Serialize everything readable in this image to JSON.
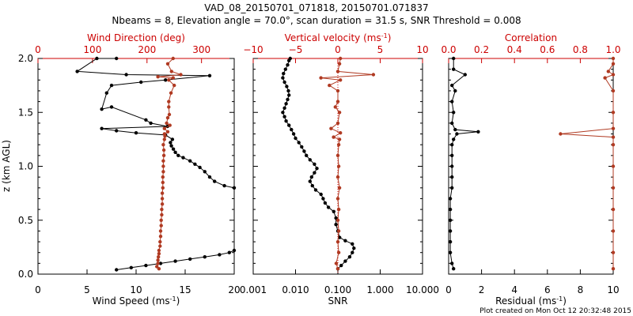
{
  "title_line1": "VAD_08_20150701_071818, 20150701.071837",
  "title_line2": "Nbeams = 8, Elevation angle = 70.0°, scan duration = 31.5 s, SNR Threshold = 0.008",
  "footer": "Plot created on Mon Oct 12 20:32:48 2015",
  "colors": {
    "black_series": "#000000",
    "red_series": "#b03a22",
    "red_axis": "#cc0000"
  },
  "chart_data": [
    {
      "type": "line",
      "ylabel": "z (km AGL)",
      "ylim": [
        0.0,
        2.0
      ],
      "yticks": [
        "0.0",
        "0.5",
        "1.0",
        "1.5",
        "2.0"
      ],
      "bottom_axis": {
        "label": "Wind Speed (ms",
        "label_sup": "-1",
        "label_end": ")",
        "range": [
          0,
          20
        ],
        "ticks": [
          "0",
          "5",
          "10",
          "15",
          "20"
        ]
      },
      "top_axis": {
        "label": "Wind Direction (deg)",
        "range": [
          0,
          360
        ],
        "ticks": [
          "0",
          "100",
          "200",
          "300"
        ]
      },
      "series": [
        {
          "axis": "bottom",
          "color": "#000000",
          "points": [
            [
              8.0,
              0.04
            ],
            [
              9.5,
              0.06
            ],
            [
              11.0,
              0.08
            ],
            [
              12.5,
              0.1
            ],
            [
              14.0,
              0.12
            ],
            [
              15.5,
              0.14
            ],
            [
              17.0,
              0.16
            ],
            [
              18.5,
              0.18
            ],
            [
              19.5,
              0.2
            ],
            [
              20.0,
              0.22
            ],
            [
              20.0,
              0.8
            ],
            [
              19.0,
              0.82
            ],
            [
              18.0,
              0.86
            ],
            [
              17.5,
              0.9
            ],
            [
              17.0,
              0.95
            ],
            [
              16.5,
              0.99
            ],
            [
              16.0,
              1.02
            ],
            [
              15.5,
              1.05
            ],
            [
              14.8,
              1.08
            ],
            [
              14.3,
              1.1
            ],
            [
              14.0,
              1.13
            ],
            [
              13.8,
              1.16
            ],
            [
              13.6,
              1.19
            ],
            [
              13.5,
              1.22
            ],
            [
              13.7,
              1.25
            ],
            [
              13.0,
              1.29
            ],
            [
              10.0,
              1.31
            ],
            [
              8.0,
              1.33
            ],
            [
              6.5,
              1.35
            ],
            [
              13.2,
              1.37
            ],
            [
              11.5,
              1.4
            ],
            [
              11.0,
              1.43
            ],
            [
              7.5,
              1.55
            ],
            [
              6.5,
              1.53
            ],
            [
              7.0,
              1.68
            ],
            [
              7.5,
              1.75
            ],
            [
              10.5,
              1.78
            ],
            [
              13.0,
              1.8
            ],
            [
              17.5,
              1.84
            ],
            [
              9.0,
              1.85
            ],
            [
              4.0,
              1.88
            ],
            [
              6.0,
              2.0
            ],
            [
              8.0,
              2.0
            ]
          ]
        },
        {
          "axis": "top",
          "color": "#b03a22",
          "points": [
            [
              222,
              0.05
            ],
            [
              218,
              0.07
            ],
            [
              220,
              0.1
            ],
            [
              220,
              0.13
            ],
            [
              221,
              0.16
            ],
            [
              222,
              0.19
            ],
            [
              222,
              0.22
            ],
            [
              224,
              0.26
            ],
            [
              224,
              0.3
            ],
            [
              225,
              0.35
            ],
            [
              225,
              0.4
            ],
            [
              226,
              0.45
            ],
            [
              226,
              0.5
            ],
            [
              227,
              0.55
            ],
            [
              227,
              0.6
            ],
            [
              228,
              0.65
            ],
            [
              228,
              0.7
            ],
            [
              228,
              0.75
            ],
            [
              229,
              0.8
            ],
            [
              229,
              0.85
            ],
            [
              229,
              0.9
            ],
            [
              230,
              0.95
            ],
            [
              230,
              1.0
            ],
            [
              230,
              1.05
            ],
            [
              231,
              1.1
            ],
            [
              231,
              1.15
            ],
            [
              230,
              1.2
            ],
            [
              232,
              1.25
            ],
            [
              233,
              1.28
            ],
            [
              232,
              1.3
            ],
            [
              238,
              1.32
            ],
            [
              232,
              1.35
            ],
            [
              242,
              1.38
            ],
            [
              236,
              1.4
            ],
            [
              238,
              1.45
            ],
            [
              241,
              1.48
            ],
            [
              240,
              1.55
            ],
            [
              240,
              1.6
            ],
            [
              244,
              1.68
            ],
            [
              250,
              1.75
            ],
            [
              240,
              1.8
            ],
            [
              248,
              1.82
            ],
            [
              220,
              1.83
            ],
            [
              262,
              1.85
            ],
            [
              245,
              1.88
            ],
            [
              238,
              1.95
            ],
            [
              248,
              2.0
            ]
          ]
        }
      ]
    },
    {
      "type": "line",
      "xscale": "log",
      "ylim": [
        0.0,
        2.0
      ],
      "bottom_axis": {
        "label": "SNR",
        "range": [
          0.001,
          10.0
        ],
        "ticks": [
          "0.001",
          "0.010",
          "0.100",
          "1.000",
          "10.000"
        ]
      },
      "top_axis": {
        "label": "Vertical velocity (ms",
        "label_sup": "-1",
        "label_end": ")",
        "range": [
          -10,
          10
        ],
        "ticks": [
          "−10",
          "−5",
          "0",
          "5",
          "10"
        ]
      },
      "series": [
        {
          "axis": "bottom",
          "color": "#000000",
          "points": [
            [
              0.1,
              0.05
            ],
            [
              0.12,
              0.08
            ],
            [
              0.15,
              0.12
            ],
            [
              0.19,
              0.16
            ],
            [
              0.22,
              0.2
            ],
            [
              0.24,
              0.24
            ],
            [
              0.22,
              0.28
            ],
            [
              0.15,
              0.31
            ],
            [
              0.11,
              0.34
            ],
            [
              0.1,
              0.4
            ],
            [
              0.09,
              0.46
            ],
            [
              0.09,
              0.52
            ],
            [
              0.08,
              0.58
            ],
            [
              0.06,
              0.62
            ],
            [
              0.05,
              0.66
            ],
            [
              0.045,
              0.7
            ],
            [
              0.04,
              0.74
            ],
            [
              0.03,
              0.78
            ],
            [
              0.025,
              0.82
            ],
            [
              0.022,
              0.86
            ],
            [
              0.024,
              0.9
            ],
            [
              0.028,
              0.94
            ],
            [
              0.032,
              0.98
            ],
            [
              0.028,
              1.02
            ],
            [
              0.022,
              1.06
            ],
            [
              0.018,
              1.1
            ],
            [
              0.016,
              1.14
            ],
            [
              0.014,
              1.18
            ],
            [
              0.012,
              1.22
            ],
            [
              0.01,
              1.26
            ],
            [
              0.009,
              1.3
            ],
            [
              0.008,
              1.34
            ],
            [
              0.007,
              1.38
            ],
            [
              0.006,
              1.42
            ],
            [
              0.0055,
              1.46
            ],
            [
              0.005,
              1.5
            ],
            [
              0.0055,
              1.54
            ],
            [
              0.006,
              1.58
            ],
            [
              0.0065,
              1.62
            ],
            [
              0.007,
              1.66
            ],
            [
              0.0068,
              1.7
            ],
            [
              0.0062,
              1.74
            ],
            [
              0.0055,
              1.78
            ],
            [
              0.005,
              1.82
            ],
            [
              0.0052,
              1.86
            ],
            [
              0.0058,
              1.9
            ],
            [
              0.0065,
              1.94
            ],
            [
              0.007,
              1.98
            ],
            [
              0.0075,
              2.0
            ]
          ]
        },
        {
          "axis": "top",
          "color": "#b03a22",
          "points": [
            [
              0.0,
              0.05
            ],
            [
              -0.2,
              0.1
            ],
            [
              0.1,
              0.2
            ],
            [
              0.0,
              0.3
            ],
            [
              0.1,
              0.4
            ],
            [
              0.0,
              0.5
            ],
            [
              0.1,
              0.6
            ],
            [
              0.0,
              0.7
            ],
            [
              0.2,
              0.8
            ],
            [
              0.0,
              0.9
            ],
            [
              0.1,
              1.0
            ],
            [
              0.0,
              1.1
            ],
            [
              0.1,
              1.2
            ],
            [
              0.2,
              1.25
            ],
            [
              -0.5,
              1.27
            ],
            [
              0.3,
              1.31
            ],
            [
              -0.8,
              1.35
            ],
            [
              0.0,
              1.4
            ],
            [
              0.2,
              1.5
            ],
            [
              -0.3,
              1.55
            ],
            [
              0.0,
              1.6
            ],
            [
              0.0,
              1.7
            ],
            [
              -1.0,
              1.75
            ],
            [
              0.3,
              1.8
            ],
            [
              -2.0,
              1.82
            ],
            [
              4.2,
              1.85
            ],
            [
              0.0,
              1.88
            ],
            [
              0.2,
              1.95
            ],
            [
              0.3,
              2.0
            ]
          ]
        }
      ]
    },
    {
      "type": "line",
      "ylim": [
        0.0,
        2.0
      ],
      "bottom_axis": {
        "label": "Residual (ms",
        "label_sup": "-1",
        "label_end": ")",
        "range": [
          0,
          10
        ],
        "ticks": [
          "0",
          "2",
          "4",
          "6",
          "8",
          "10"
        ]
      },
      "top_axis": {
        "label": "Correlation",
        "range": [
          0.0,
          1.0
        ],
        "ticks": [
          "0.0",
          "0.2",
          "0.4",
          "0.6",
          "0.8",
          "1.0"
        ]
      },
      "series": [
        {
          "axis": "bottom",
          "color": "#000000",
          "points": [
            [
              0.3,
              0.05
            ],
            [
              0.2,
              0.1
            ],
            [
              0.1,
              0.2
            ],
            [
              0.1,
              0.3
            ],
            [
              0.1,
              0.4
            ],
            [
              0.1,
              0.5
            ],
            [
              0.1,
              0.6
            ],
            [
              0.1,
              0.7
            ],
            [
              0.2,
              0.8
            ],
            [
              0.2,
              0.9
            ],
            [
              0.2,
              1.0
            ],
            [
              0.2,
              1.1
            ],
            [
              0.2,
              1.2
            ],
            [
              0.3,
              1.25
            ],
            [
              0.5,
              1.3
            ],
            [
              1.8,
              1.32
            ],
            [
              0.4,
              1.34
            ],
            [
              0.2,
              1.4
            ],
            [
              0.3,
              1.5
            ],
            [
              0.2,
              1.6
            ],
            [
              0.4,
              1.7
            ],
            [
              0.2,
              1.75
            ],
            [
              1.0,
              1.85
            ],
            [
              0.3,
              1.9
            ],
            [
              0.3,
              2.0
            ]
          ]
        },
        {
          "axis": "top",
          "color": "#b03a22",
          "points": [
            [
              1.0,
              0.05
            ],
            [
              1.0,
              0.2
            ],
            [
              1.0,
              0.4
            ],
            [
              1.0,
              0.6
            ],
            [
              1.0,
              0.8
            ],
            [
              1.0,
              1.0
            ],
            [
              1.0,
              1.2
            ],
            [
              1.0,
              1.27
            ],
            [
              0.68,
              1.3
            ],
            [
              1.0,
              1.35
            ],
            [
              1.0,
              1.5
            ],
            [
              1.0,
              1.7
            ],
            [
              0.95,
              1.82
            ],
            [
              1.0,
              1.85
            ],
            [
              0.97,
              1.88
            ],
            [
              1.0,
              1.95
            ],
            [
              1.0,
              2.0
            ]
          ]
        }
      ]
    }
  ]
}
